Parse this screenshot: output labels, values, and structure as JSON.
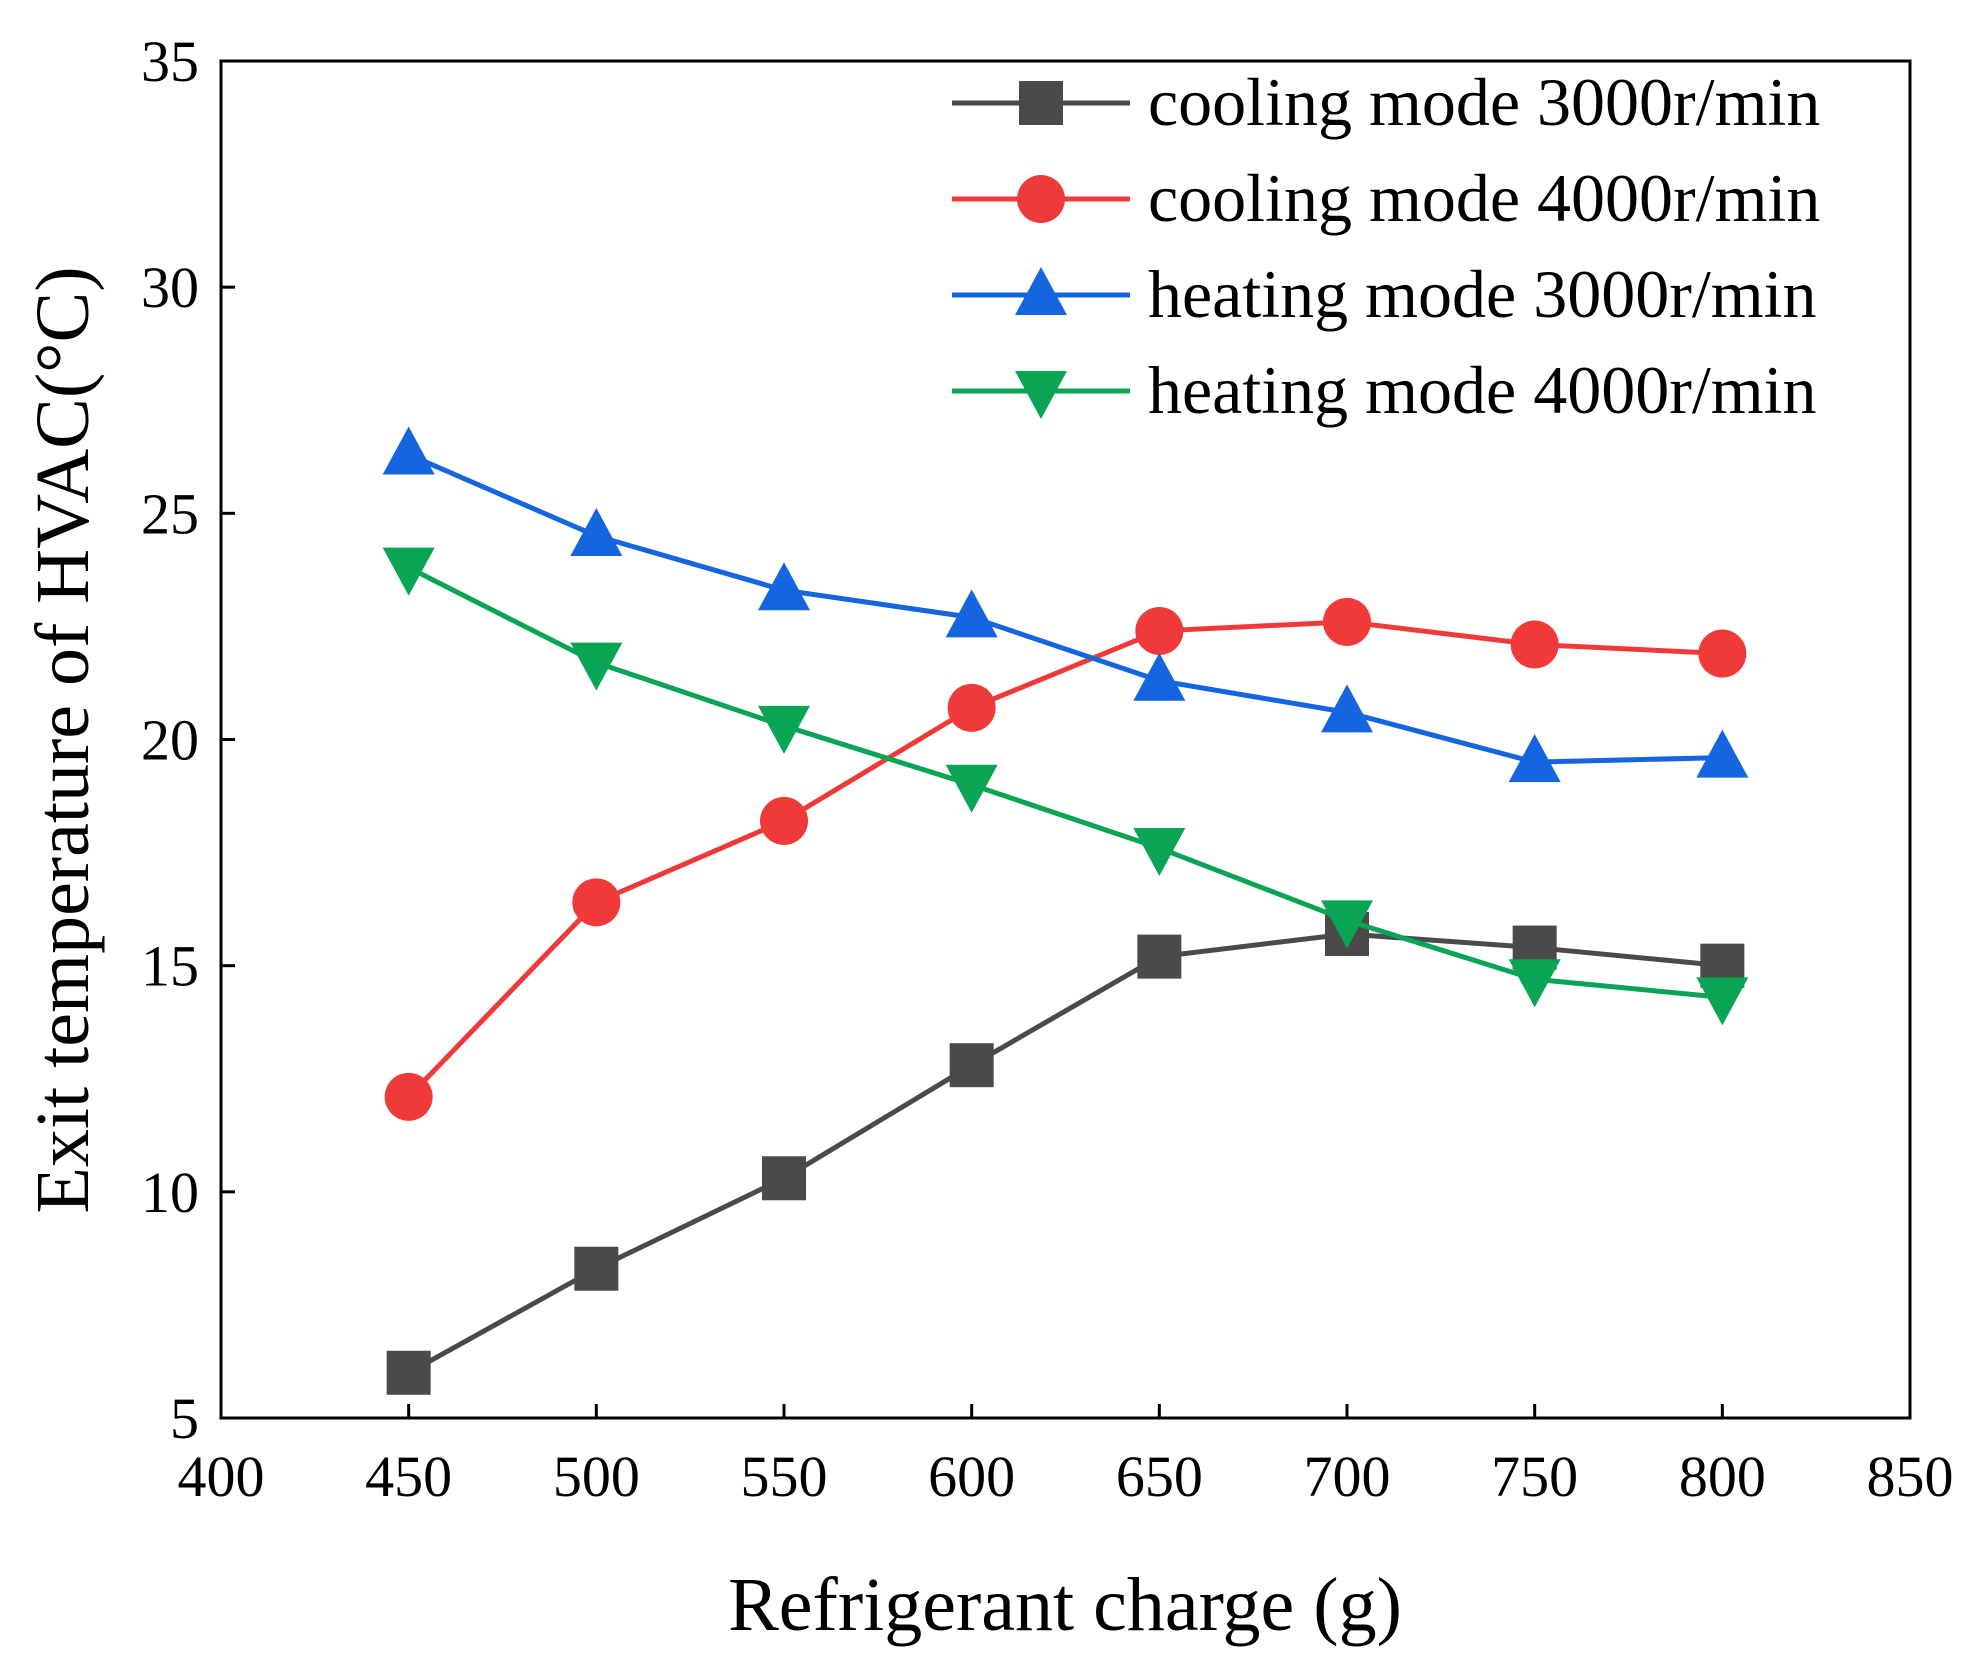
{
  "chart_data": {
    "type": "line",
    "title": "",
    "xlabel": "Refrigerant charge (g)",
    "ylabel": "Exit temperature of HVAC(°C)",
    "xlim": [
      400,
      850
    ],
    "ylim": [
      5,
      35
    ],
    "xticks": [
      400,
      450,
      500,
      550,
      600,
      650,
      700,
      750,
      800,
      850
    ],
    "yticks": [
      5,
      10,
      15,
      20,
      25,
      30,
      35
    ],
    "grid": false,
    "legend_placement": "top-right",
    "x": [
      450,
      500,
      550,
      600,
      650,
      700,
      750,
      800
    ],
    "series": [
      {
        "name": "cooling mode 3000r/min",
        "color": "#4a4a4a",
        "marker": "square",
        "values": [
          6.0,
          8.3,
          10.3,
          12.8,
          15.2,
          15.7,
          15.4,
          15.0
        ]
      },
      {
        "name": "cooling mode 4000r/min",
        "color": "#f03a3a",
        "marker": "circle",
        "values": [
          12.1,
          16.4,
          18.2,
          20.7,
          22.4,
          22.6,
          22.1,
          21.9
        ]
      },
      {
        "name": "heating mode 3000r/min",
        "color": "#1565e0",
        "marker": "triangle-up",
        "values": [
          26.3,
          24.5,
          23.3,
          22.7,
          21.3,
          20.6,
          19.5,
          19.6
        ]
      },
      {
        "name": "heating mode 4000r/min",
        "color": "#0aa455",
        "marker": "triangle-down",
        "values": [
          23.8,
          21.7,
          20.3,
          19.0,
          17.6,
          16.0,
          14.7,
          14.3
        ]
      }
    ]
  }
}
